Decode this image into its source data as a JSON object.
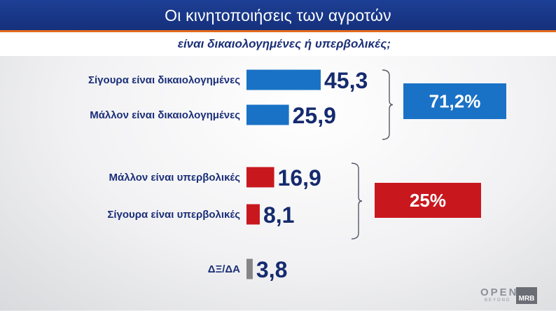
{
  "header": {
    "title": "Οι κινητοποιήσεις των αγροτών",
    "subtitle": "είναι δικαιολογημένες ή υπερβολικές;"
  },
  "chart_data": {
    "type": "bar",
    "orientation": "horizontal",
    "categories": [
      "Σίγουρα είναι δικαιολογημένες",
      "Μάλλον είναι δικαιολογημένες",
      "Μάλλον είναι υπερβολικές",
      "Σίγουρα είναι υπερβολικές",
      "ΔΞ/ΔΑ"
    ],
    "values": [
      45.3,
      25.9,
      16.9,
      8.1,
      3.8
    ],
    "value_labels": [
      "45,3",
      "25,9",
      "16,9",
      "8,1",
      "3,8"
    ],
    "colors": [
      "#1a72c6",
      "#1a72c6",
      "#c8181e",
      "#c8181e",
      "#858585"
    ],
    "groups": [
      {
        "label": "71,2%",
        "members": [
          0,
          1
        ],
        "color": "#1a72c6"
      },
      {
        "label": "25%",
        "members": [
          2,
          3
        ],
        "color": "#c8181e"
      }
    ],
    "title": "Οι κινητοποιήσεις των αγροτών",
    "subtitle": "είναι δικαιολογημένες ή υπερβολικές;",
    "grid": false
  },
  "branding": {
    "open_logo": "OPEN",
    "open_tagline": "BEYOND",
    "mrb_logo": "MRB"
  }
}
